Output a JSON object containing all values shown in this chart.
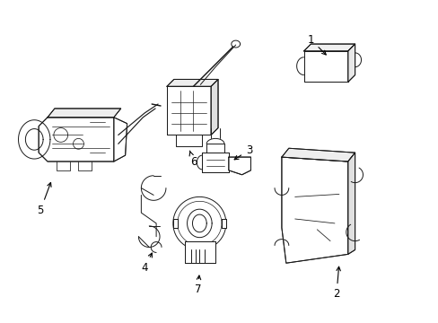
{
  "background_color": "#ffffff",
  "line_color": "#1a1a1a",
  "label_color": "#000000",
  "figsize": [
    4.89,
    3.6
  ],
  "dpi": 100,
  "font_size": 8.5,
  "lw": 0.7
}
